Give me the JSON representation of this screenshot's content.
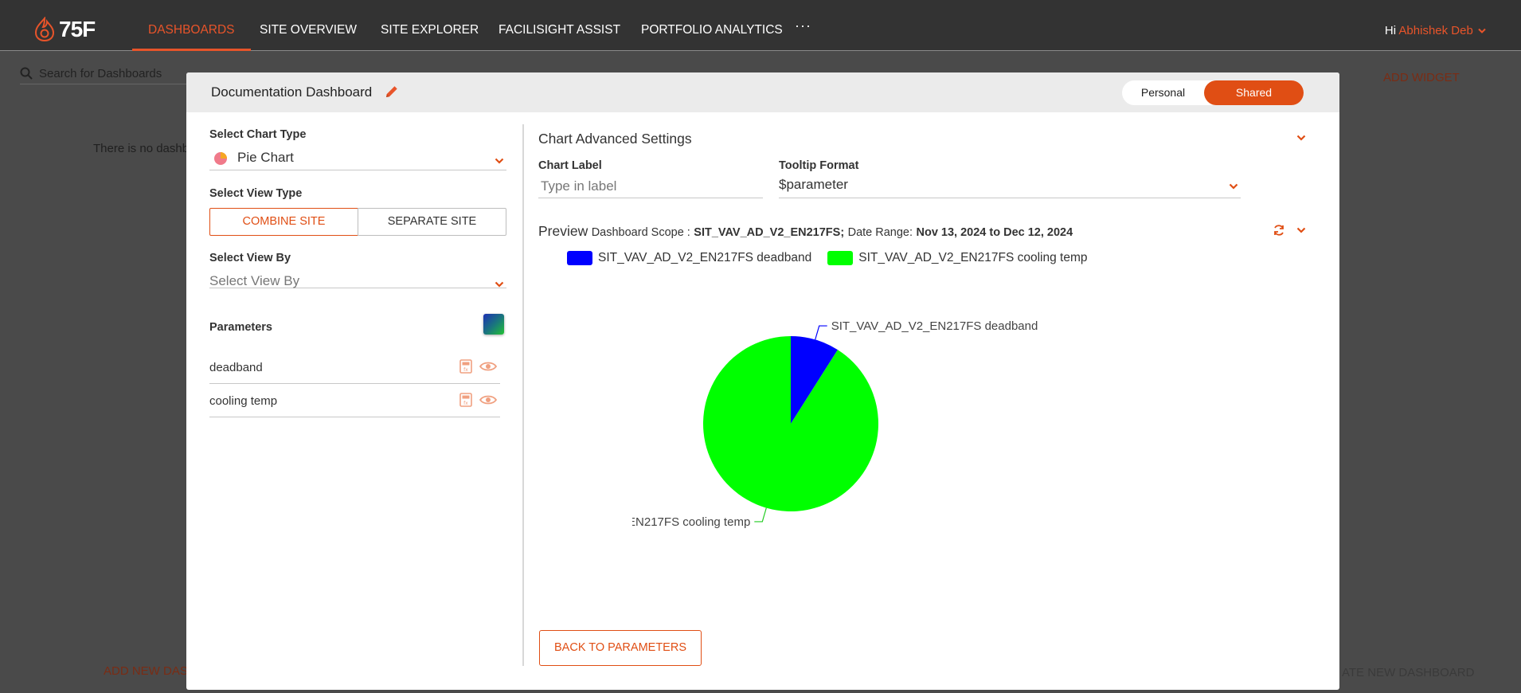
{
  "brand": {
    "logo_text": "75F",
    "accent": "#e8542a"
  },
  "nav": {
    "items": [
      {
        "label": "DASHBOARDS",
        "active": true
      },
      {
        "label": "SITE OVERVIEW"
      },
      {
        "label": "SITE EXPLORER"
      },
      {
        "label": "FACILISIGHT ASSIST"
      },
      {
        "label": "PORTFOLIO ANALYTICS"
      }
    ],
    "more": "···",
    "greeting": "Hi",
    "user_name": "Abhishek Deb"
  },
  "background": {
    "search_placeholder": "Search for Dashboards",
    "empty_text": "There is no dashb",
    "add_widget": "ADD WIDGET",
    "add_new": "ADD NEW DAS",
    "create_new": "ATE NEW DASHBOARD"
  },
  "modal": {
    "title": "Documentation Dashboard",
    "toggle": {
      "personal": "Personal",
      "shared": "Shared",
      "selected": "Shared"
    },
    "chart_type": {
      "label": "Select Chart Type",
      "value": "Pie Chart"
    },
    "view_type": {
      "label": "Select View Type",
      "combine": "COMBINE SITE",
      "separate": "SEPARATE SITE",
      "selected": "COMBINE SITE"
    },
    "view_by": {
      "label": "Select View By",
      "placeholder": "Select View By"
    },
    "parameters": {
      "label": "Parameters",
      "items": [
        {
          "name": "deadband"
        },
        {
          "name": "cooling temp"
        }
      ]
    },
    "advanced": {
      "title": "Chart Advanced Settings",
      "chart_label": {
        "label": "Chart Label",
        "placeholder": "Type in label"
      },
      "tooltip_format": {
        "label": "Tooltip Format",
        "value": "$parameter"
      }
    },
    "preview": {
      "title": "Preview",
      "scope_label": "Dashboard Scope :",
      "scope_value": "SIT_VAV_AD_V2_EN217FS;",
      "range_label": "Date Range:",
      "range_value": "Nov 13, 2024 to Dec 12, 2024"
    },
    "back_button": "BACK TO PARAMETERS"
  },
  "chart_data": {
    "type": "pie",
    "series": [
      {
        "name": "SIT_VAV_AD_V2_EN217FS deadband",
        "value": 9,
        "color": "#0000ff"
      },
      {
        "name": "SIT_VAV_AD_V2_EN217FS cooling temp",
        "value": 91,
        "color": "#00ff00"
      }
    ],
    "legend_position": "top-left"
  }
}
